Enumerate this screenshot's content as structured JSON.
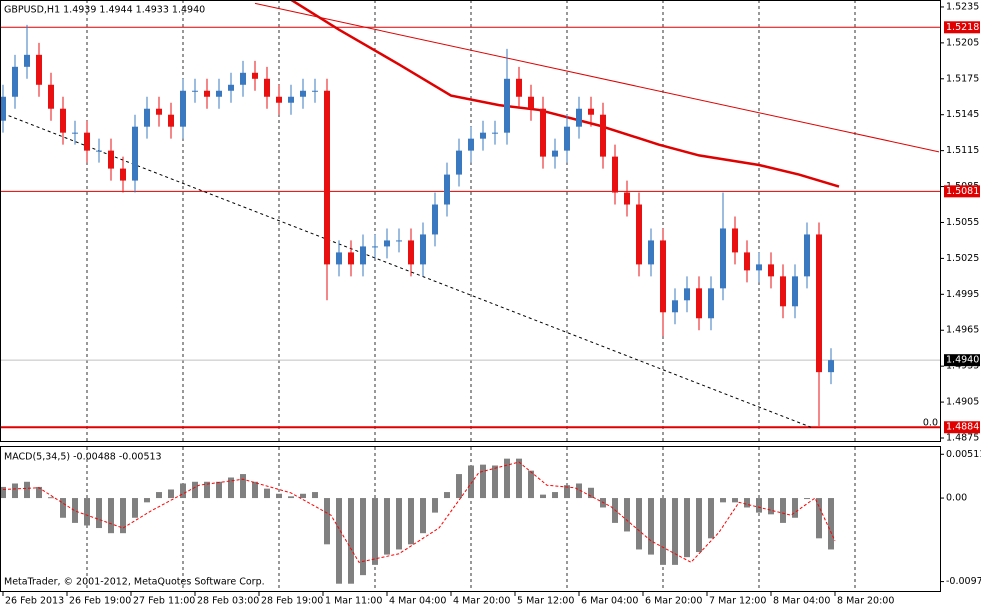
{
  "chart_data": [
    {
      "type": "candlestick",
      "title": "GBPUSD,H1  1.4939 1.4944 1.4933 1.4940",
      "x": [
        0,
        3,
        6,
        9,
        12,
        15,
        18,
        21,
        24,
        27,
        30,
        33,
        36,
        39,
        42,
        45,
        48,
        51,
        54,
        57,
        60,
        63,
        66,
        69,
        72,
        75,
        78,
        81,
        84,
        87,
        90,
        93,
        96,
        99,
        102,
        105,
        108,
        111,
        114,
        117,
        120,
        123,
        126,
        129,
        132,
        135,
        138,
        141,
        144,
        147,
        150,
        153,
        156,
        159,
        162,
        165,
        168,
        171,
        174,
        177,
        180,
        183,
        186,
        189,
        192,
        195,
        198,
        201,
        204,
        207
      ],
      "open": [
        1.514,
        1.516,
        1.5185,
        1.5195,
        1.517,
        1.515,
        1.513,
        1.513,
        1.5115,
        1.5115,
        1.51,
        1.509,
        1.5135,
        1.515,
        1.5145,
        1.5135,
        1.5165,
        1.5165,
        1.516,
        1.5165,
        1.517,
        1.518,
        1.5175,
        1.516,
        1.5155,
        1.516,
        1.5165,
        1.5165,
        1.502,
        1.503,
        1.502,
        1.5035,
        1.5035,
        1.504,
        1.504,
        1.502,
        1.5045,
        1.507,
        1.5095,
        1.5115,
        1.5125,
        1.513,
        1.513,
        1.5175,
        1.516,
        1.515,
        1.511,
        1.5115,
        1.5135,
        1.515,
        1.5145,
        1.511,
        1.508,
        1.507,
        1.502,
        1.504,
        1.498,
        1.499,
        1.5,
        1.4975,
        1.5,
        1.505,
        1.503,
        1.5015,
        1.502,
        1.501,
        1.4985,
        1.501,
        1.5045,
        1.493
      ],
      "high": [
        1.517,
        1.5195,
        1.522,
        1.5205,
        1.518,
        1.516,
        1.514,
        1.514,
        1.5125,
        1.5125,
        1.511,
        1.5145,
        1.516,
        1.516,
        1.5155,
        1.5175,
        1.5175,
        1.5175,
        1.5175,
        1.518,
        1.519,
        1.519,
        1.5185,
        1.517,
        1.517,
        1.5175,
        1.5175,
        1.5175,
        1.504,
        1.504,
        1.5045,
        1.5045,
        1.505,
        1.505,
        1.505,
        1.5055,
        1.508,
        1.5105,
        1.5125,
        1.5135,
        1.514,
        1.514,
        1.52,
        1.5185,
        1.517,
        1.516,
        1.5125,
        1.5145,
        1.516,
        1.516,
        1.5155,
        1.512,
        1.509,
        1.508,
        1.505,
        1.505,
        1.5,
        1.501,
        1.501,
        1.501,
        1.508,
        1.506,
        1.504,
        1.503,
        1.503,
        1.502,
        1.502,
        1.5055,
        1.5055,
        1.495
      ],
      "low": [
        1.513,
        1.515,
        1.5175,
        1.516,
        1.514,
        1.512,
        1.512,
        1.5105,
        1.5105,
        1.509,
        1.508,
        1.508,
        1.5125,
        1.5135,
        1.5125,
        1.5125,
        1.5155,
        1.515,
        1.515,
        1.5155,
        1.516,
        1.5165,
        1.515,
        1.5145,
        1.5145,
        1.515,
        1.5155,
        1.499,
        1.501,
        1.501,
        1.501,
        1.5025,
        1.5025,
        1.503,
        1.501,
        1.501,
        1.5035,
        1.506,
        1.5085,
        1.5105,
        1.5115,
        1.512,
        1.512,
        1.515,
        1.514,
        1.51,
        1.51,
        1.5105,
        1.5125,
        1.5135,
        1.51,
        1.507,
        1.506,
        1.501,
        1.501,
        1.496,
        1.497,
        1.498,
        1.4965,
        1.4965,
        1.499,
        1.502,
        1.5005,
        1.5005,
        1.5,
        1.4975,
        1.4975,
        1.5,
        1.4885,
        1.492
      ],
      "close": [
        1.516,
        1.5185,
        1.5195,
        1.517,
        1.515,
        1.513,
        1.513,
        1.5115,
        1.5115,
        1.51,
        1.509,
        1.5135,
        1.515,
        1.5145,
        1.5135,
        1.5165,
        1.5165,
        1.516,
        1.5165,
        1.517,
        1.518,
        1.5175,
        1.516,
        1.5155,
        1.516,
        1.5165,
        1.5165,
        1.502,
        1.503,
        1.502,
        1.5035,
        1.5035,
        1.504,
        1.504,
        1.502,
        1.5045,
        1.507,
        1.5095,
        1.5115,
        1.5125,
        1.513,
        1.513,
        1.5175,
        1.516,
        1.515,
        1.511,
        1.5115,
        1.5135,
        1.515,
        1.5145,
        1.511,
        1.508,
        1.507,
        1.502,
        1.504,
        1.498,
        1.499,
        1.5,
        1.4975,
        1.5,
        1.505,
        1.503,
        1.5015,
        1.502,
        1.501,
        1.4985,
        1.501,
        1.5045,
        1.493,
        1.494
      ],
      "up_color": "#3a78c0",
      "down_color": "#e81010",
      "xlim": [
        0,
        234.25
      ],
      "ylim": [
        1.48725,
        1.52408
      ],
      "yticks": [
        1.5235,
        1.5205,
        1.5175,
        1.5145,
        1.5115,
        1.5085,
        1.5055,
        1.5025,
        1.4995,
        1.4965,
        1.4935,
        1.4905,
        1.4875
      ],
      "xgrid": [
        21,
        45,
        69,
        93,
        117,
        141,
        165,
        189,
        213
      ],
      "moving_average": {
        "color": "#e00000",
        "x": [
          72,
          84,
          99,
          112,
          124,
          134,
          149,
          164,
          174,
          189,
          199,
          209
        ],
        "values": [
          1.5241,
          1.5216,
          1.5187,
          1.5161,
          1.5153,
          1.5149,
          1.5136,
          1.512,
          1.5111,
          1.5103,
          1.5095,
          1.5085
        ]
      },
      "trendlines": [
        {
          "color": "#e00000",
          "dash": false,
          "x": [
            63,
            234
          ],
          "values": [
            1.5238,
            1.5114
          ]
        },
        {
          "color": "#000000",
          "dash": true,
          "x": [
            0,
            202
          ],
          "values": [
            1.5146,
            1.4884
          ]
        }
      ],
      "levels": [
        1.5218,
        1.5081,
        1.4884
      ],
      "level_color": "#e00000",
      "current_price": {
        "value": 1.494,
        "label": "1.4940"
      },
      "annotation": "0.0"
    },
    {
      "type": "macd",
      "title": "MACD(5,34,5) -0.00488 -0.00513",
      "x": [
        0,
        3,
        6,
        9,
        12,
        15,
        18,
        21,
        24,
        27,
        30,
        33,
        36,
        39,
        42,
        45,
        48,
        51,
        54,
        57,
        60,
        63,
        66,
        69,
        72,
        75,
        78,
        81,
        84,
        87,
        90,
        93,
        96,
        99,
        102,
        105,
        108,
        111,
        114,
        117,
        120,
        123,
        126,
        129,
        132,
        135,
        138,
        141,
        144,
        147,
        150,
        153,
        156,
        159,
        162,
        165,
        168,
        171,
        174,
        177,
        180,
        183,
        186,
        189,
        192,
        195,
        198,
        201,
        204,
        207
      ],
      "values": [
        0.0013,
        0.0017,
        0.0019,
        0.0013,
        0.0001,
        -0.0023,
        -0.0029,
        -0.0032,
        -0.0035,
        -0.0041,
        -0.0041,
        -0.0023,
        -0.0005,
        0.0007,
        0.001,
        0.0017,
        0.0019,
        0.0019,
        0.0019,
        0.0024,
        0.0028,
        0.0019,
        0.0011,
        0.0005,
        0.0002,
        0.0005,
        0.0007,
        -0.0054,
        -0.01,
        -0.01,
        -0.009,
        -0.0078,
        -0.0066,
        -0.006,
        -0.0054,
        -0.0041,
        -0.0017,
        0.0007,
        0.0028,
        0.0038,
        0.0039,
        0.0038,
        0.0046,
        0.0046,
        0.0032,
        0.0004,
        0.0007,
        0.0015,
        0.0017,
        0.0012,
        -0.0011,
        -0.0029,
        -0.0039,
        -0.006,
        -0.0066,
        -0.0078,
        -0.0078,
        -0.0069,
        -0.0063,
        -0.0047,
        -0.0005,
        -0.0005,
        -0.0011,
        -0.0017,
        -0.0019,
        -0.0029,
        -0.0023,
        -0.0001,
        -0.0047,
        -0.006
      ],
      "color": "#808080",
      "signal": {
        "color": "#ff0000",
        "x": [
          0,
          9,
          18,
          30,
          37,
          49,
          60,
          72,
          82,
          89,
          99,
          109,
          119,
          129,
          136,
          143,
          152,
          162,
          172,
          179,
          184,
          197,
          203,
          208
        ],
        "values": [
          0.001,
          0.0012,
          -0.0015,
          -0.0035,
          -0.0015,
          0.0015,
          0.0022,
          0.0006,
          -0.002,
          -0.0075,
          -0.0065,
          -0.0035,
          0.003,
          0.0042,
          0.0015,
          0.0012,
          -0.001,
          -0.005,
          -0.0075,
          -0.004,
          -0.0005,
          -0.002,
          0.0,
          -0.005
        ]
      },
      "xlim": [
        0,
        234.25
      ],
      "ylim": [
        -0.01085,
        0.00596
      ],
      "yticks": [
        0.00511,
        {
          "value": 0,
          "label": "0.00"
        },
        -0.00975
      ],
      "xgrid": [
        21,
        45,
        69,
        93,
        117,
        141,
        165,
        189,
        213
      ],
      "xticks": [
        {
          "value": 0,
          "label": "26 Feb 2013"
        },
        {
          "value": 16,
          "label": "26 Feb 19:00"
        },
        {
          "value": 32,
          "label": "27 Feb 11:00"
        },
        {
          "value": 48,
          "label": "28 Feb 03:00"
        },
        {
          "value": 64,
          "label": "28 Feb 19:00"
        },
        {
          "value": 80,
          "label": "1 Mar 11:00"
        },
        {
          "value": 96,
          "label": "4 Mar 04:00"
        },
        {
          "value": 112,
          "label": "4 Mar 20:00"
        },
        {
          "value": 128,
          "label": "5 Mar 12:00"
        },
        {
          "value": 144,
          "label": "6 Mar 04:00"
        },
        {
          "value": 160,
          "label": "6 Mar 20:00"
        },
        {
          "value": 176,
          "label": "7 Mar 12:00"
        },
        {
          "value": 192,
          "label": "8 Mar 04:00"
        },
        {
          "value": 208,
          "label": "8 Mar 20:00"
        }
      ],
      "footer": "MetaTrader, © 2001-2012, MetaQuotes Software Corp."
    }
  ]
}
